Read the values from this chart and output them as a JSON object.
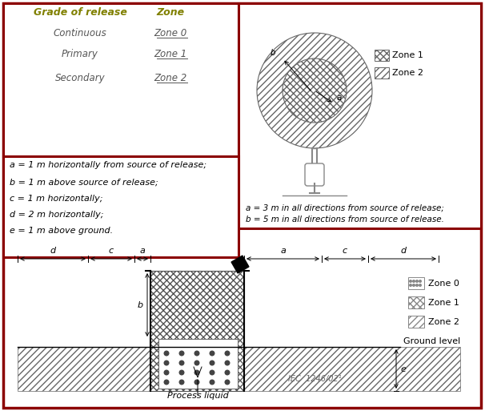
{
  "border_color": "#8B0000",
  "bg_color": "#FFFFFF",
  "header_color": "#808000",
  "grade_rows": [
    [
      "Continuous",
      "Zone 0"
    ],
    [
      "Primary",
      "Zone 1"
    ],
    [
      "Secondary",
      "Zone 2"
    ]
  ],
  "notes_left": [
    "a = 1 m horizontally from source of release;",
    "b = 1 m above source of release;",
    "c = 1 m horizontally;",
    "d = 2 m horizontally;",
    "e = 1 m above ground."
  ],
  "notes_right": [
    "a = 3 m in all directions from source of release;",
    "b = 5 m in all directions from source of release."
  ],
  "bottom_label": "Process liquid",
  "iec_label": "IEC  1246/02¹",
  "ground_level_label": "Ground level",
  "dim_labels_bottom": [
    "d",
    "c",
    "a",
    "a",
    "c",
    "d"
  ],
  "legend_top": [
    "Zone 1",
    "Zone 2"
  ],
  "legend_bottom": [
    "Zone 0",
    "Zone 1",
    "Zone 2"
  ]
}
